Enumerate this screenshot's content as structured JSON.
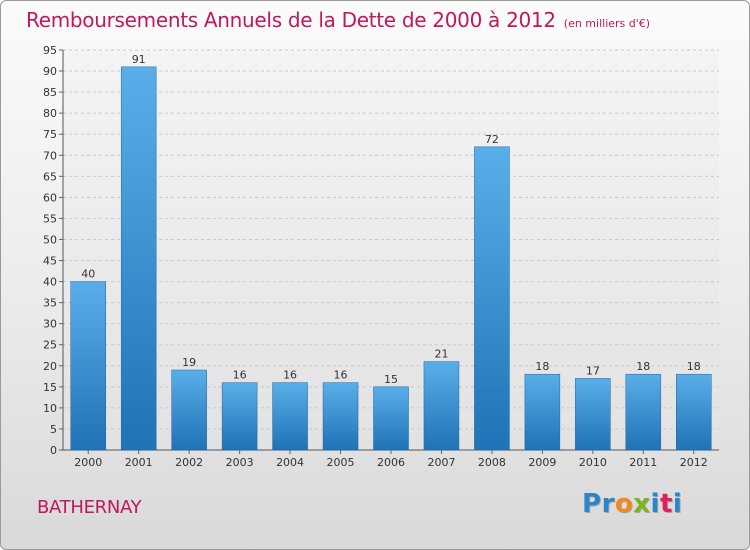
{
  "header": {
    "title": "Remboursements Annuels de la Dette de 2000 à 2012",
    "unit": "(en milliers d'€)"
  },
  "commune": "BATHERNAY",
  "logo": {
    "p": "P",
    "r": "r",
    "o": "o",
    "x": "x",
    "i": "i",
    "t": "t",
    "i2": "i"
  },
  "colors": {
    "title": "#c0185c",
    "bar_top": "#5aaee8",
    "bar_bottom": "#1f73b6"
  },
  "chart_data": {
    "type": "bar",
    "title": "Remboursements Annuels de la Dette de 2000 à 2012",
    "xlabel": "",
    "ylabel": "",
    "categories": [
      "2000",
      "2001",
      "2002",
      "2003",
      "2004",
      "2005",
      "2006",
      "2007",
      "2008",
      "2009",
      "2010",
      "2011",
      "2012"
    ],
    "values": [
      40,
      91,
      19,
      16,
      16,
      16,
      15,
      21,
      72,
      18,
      17,
      18,
      18
    ],
    "ylim": [
      0,
      95
    ],
    "yticks": [
      0,
      5,
      10,
      15,
      20,
      25,
      30,
      35,
      40,
      45,
      50,
      55,
      60,
      65,
      70,
      75,
      80,
      85,
      90,
      95
    ],
    "grid": true,
    "legend": "none"
  }
}
